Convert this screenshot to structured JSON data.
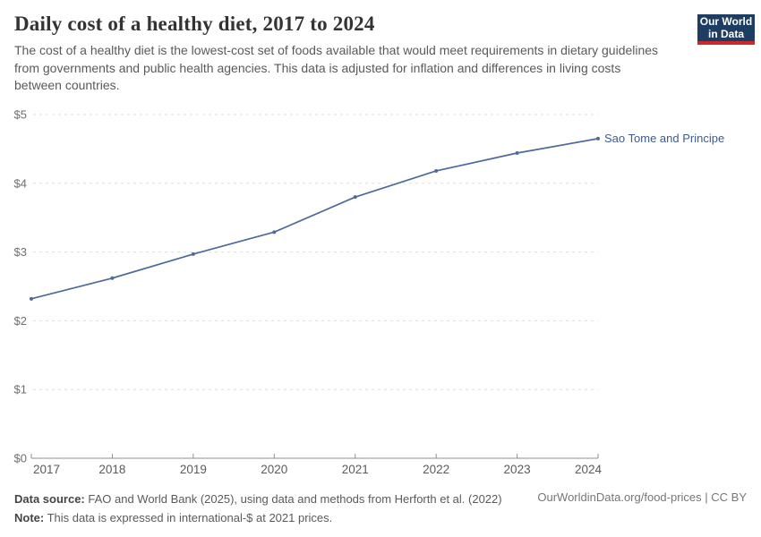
{
  "header": {
    "title": "Daily cost of a healthy diet, 2017 to 2024",
    "subtitle": "The cost of a healthy diet is the lowest-cost set of foods available that would meet requirements in dietary guidelines from governments and public health agencies. This data is adjusted for inflation and differences in living costs between countries.",
    "logo": {
      "line1": "Our World",
      "line2": "in Data",
      "bg_color": "#1d3d63",
      "accent_color": "#cc2929"
    }
  },
  "chart_data": {
    "type": "line",
    "title": "Daily cost of a healthy diet, 2017 to 2024",
    "x": [
      2017,
      2018,
      2019,
      2020,
      2021,
      2022,
      2023,
      2024
    ],
    "series": [
      {
        "name": "Sao Tome and Principe",
        "values": [
          2.32,
          2.62,
          2.97,
          3.29,
          3.8,
          4.18,
          4.44,
          4.65
        ],
        "color": "#4C6A9C",
        "label_color": "#3d5c8f"
      }
    ],
    "xlabel": "",
    "ylabel": "",
    "ylim": [
      0,
      5
    ],
    "ytick_labels": [
      "$0",
      "$1",
      "$2",
      "$3",
      "$4",
      "$5"
    ],
    "xtick_labels": [
      "2017",
      "2018",
      "2019",
      "2020",
      "2021",
      "2022",
      "2023",
      "2024"
    ],
    "grid": "horizontal-dashed",
    "legend_position": "end-of-line-label",
    "grid_color": "#dedede",
    "axis_color": "#8f8f8f",
    "tick_label_color": "#5b5b5b",
    "ytick_label_color": "#6e6e6e"
  },
  "footer": {
    "source_label": "Data source:",
    "source_text": " FAO and World Bank (2025), using data and methods from Herforth et al. (2022)",
    "note_label": "Note:",
    "note_text": " This data is expressed in international-$ at 2021 prices.",
    "rights": "OurWorldinData.org/food-prices | CC BY"
  }
}
